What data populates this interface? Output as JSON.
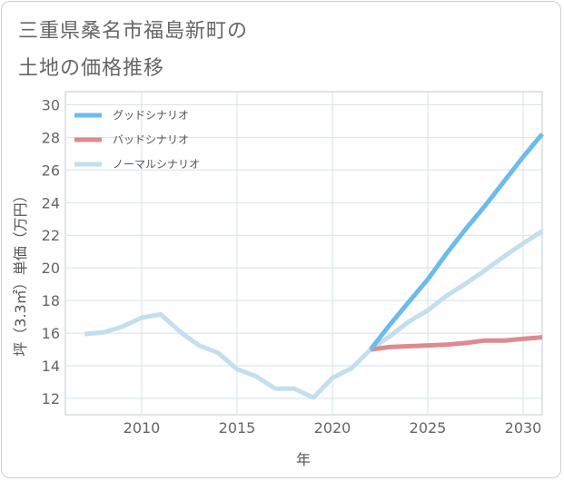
{
  "header": {
    "title_line1": "三重県桑名市福島新町の",
    "title_line2": "土地の価格推移"
  },
  "chart_data": {
    "type": "line",
    "xlabel": "年",
    "ylabel": "坪（3.3㎡）単価（万円）",
    "xlim": [
      2006,
      2031
    ],
    "ylim": [
      11,
      30.8
    ],
    "x_ticks": [
      2010,
      2015,
      2020,
      2025,
      2030
    ],
    "y_ticks": [
      12,
      14,
      16,
      18,
      20,
      22,
      24,
      26,
      28,
      30
    ],
    "grid": true,
    "legend_position": "top-left",
    "series": [
      {
        "name": "グッドシナリオ",
        "color": "#6cbbed",
        "points": [
          [
            2022,
            15.0
          ],
          [
            2023,
            16.5
          ],
          [
            2024,
            17.9
          ],
          [
            2025,
            19.3
          ],
          [
            2026,
            20.9
          ],
          [
            2027,
            22.4
          ],
          [
            2028,
            23.8
          ],
          [
            2029,
            25.3
          ],
          [
            2030,
            26.8
          ],
          [
            2031,
            28.2
          ]
        ]
      },
      {
        "name": "バッドシナリオ",
        "color": "#dd8a90",
        "points": [
          [
            2022,
            15.0
          ],
          [
            2023,
            15.15
          ],
          [
            2024,
            15.2
          ],
          [
            2025,
            15.25
          ],
          [
            2026,
            15.3
          ],
          [
            2027,
            15.4
          ],
          [
            2028,
            15.55
          ],
          [
            2029,
            15.55
          ],
          [
            2030,
            15.65
          ],
          [
            2031,
            15.75
          ]
        ]
      },
      {
        "name": "ノーマルシナリオ",
        "color": "#c3dfee",
        "points": [
          [
            2007,
            15.95
          ],
          [
            2008,
            16.05
          ],
          [
            2009,
            16.4
          ],
          [
            2010,
            16.95
          ],
          [
            2011,
            17.15
          ],
          [
            2012,
            16.1
          ],
          [
            2013,
            15.25
          ],
          [
            2014,
            14.8
          ],
          [
            2015,
            13.8
          ],
          [
            2016,
            13.35
          ],
          [
            2017,
            12.6
          ],
          [
            2018,
            12.6
          ],
          [
            2019,
            12.05
          ],
          [
            2020,
            13.25
          ],
          [
            2021,
            13.85
          ],
          [
            2022,
            15.0
          ],
          [
            2023,
            15.8
          ],
          [
            2024,
            16.7
          ],
          [
            2025,
            17.4
          ],
          [
            2026,
            18.3
          ],
          [
            2027,
            19.05
          ],
          [
            2028,
            19.85
          ],
          [
            2029,
            20.7
          ],
          [
            2030,
            21.5
          ],
          [
            2031,
            22.25
          ]
        ]
      }
    ]
  }
}
